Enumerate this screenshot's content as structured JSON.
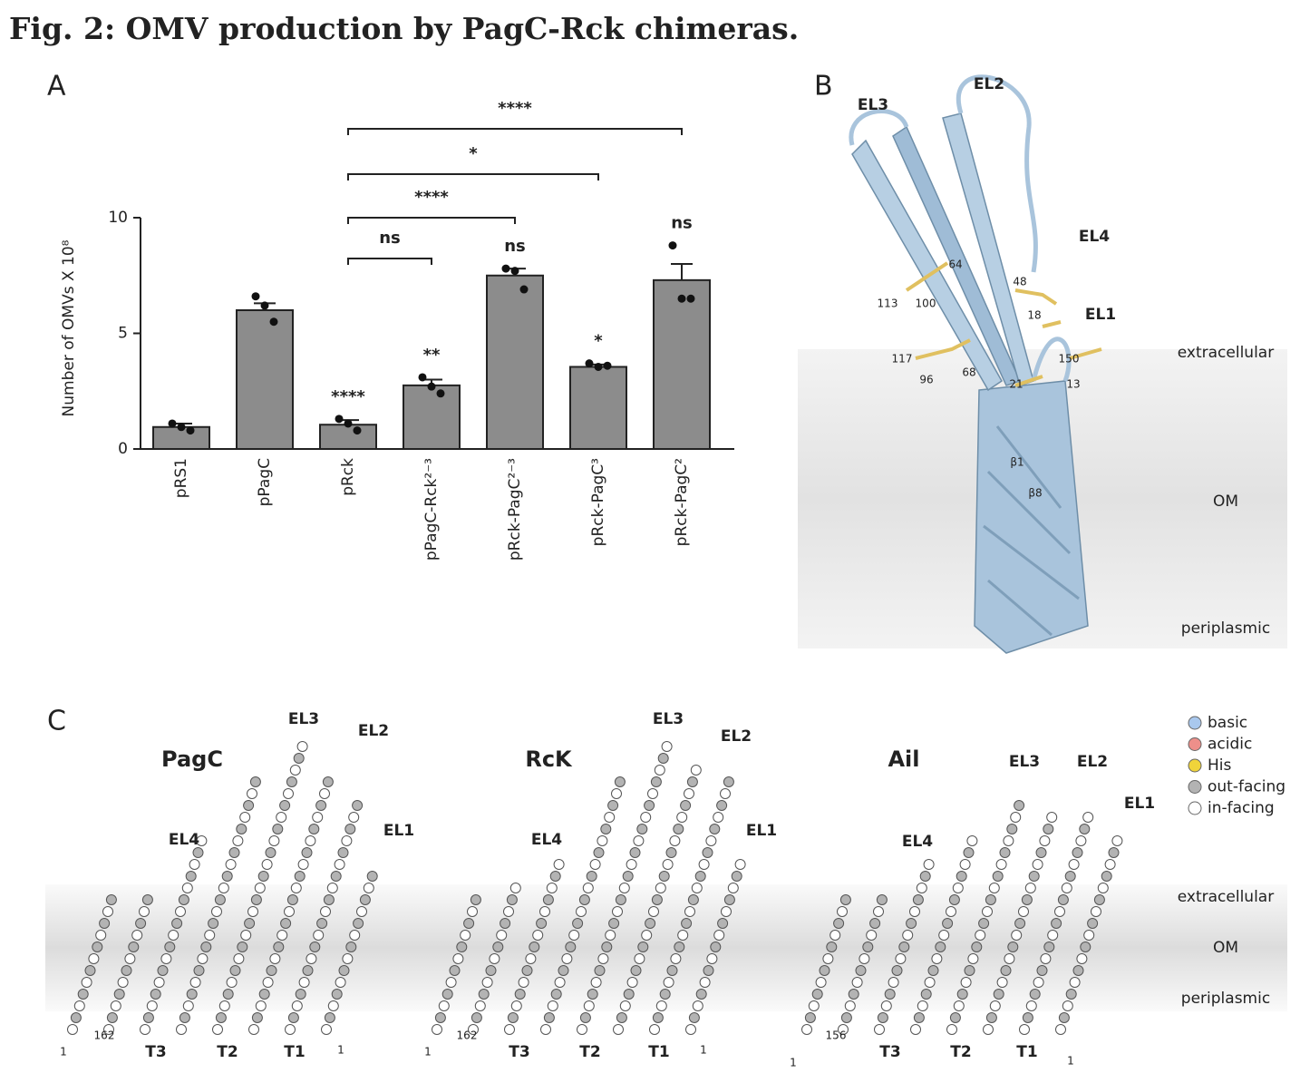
{
  "title": "Fig. 2: OMV production by PagC-Rck chimeras.",
  "chart_data": {
    "type": "bar",
    "panel": "A",
    "ylabel": "Number of OMVs X 10⁸",
    "categories": [
      "pRS1",
      "pPagC",
      "pRck",
      "pPagC-Rck²⁻³",
      "pRck-PagC²⁻³",
      "pRck-PagC³",
      "pRck-PagC²"
    ],
    "values": [
      0.95,
      6.0,
      1.05,
      2.75,
      7.5,
      3.55,
      7.3
    ],
    "errors": [
      0.15,
      0.3,
      0.2,
      0.25,
      0.3,
      0.1,
      0.7
    ],
    "points": [
      [
        1.1,
        0.95,
        0.8
      ],
      [
        6.6,
        6.2,
        5.5
      ],
      [
        1.3,
        1.1,
        0.8
      ],
      [
        3.1,
        2.7,
        2.4
      ],
      [
        7.8,
        7.7,
        6.9
      ],
      [
        3.7,
        3.55,
        3.6
      ],
      [
        8.8,
        6.5,
        6.5
      ]
    ],
    "value_annotations": [
      null,
      null,
      "****",
      "**",
      "ns",
      "*",
      "ns"
    ],
    "comparisons": [
      {
        "from": 2,
        "to": 3,
        "label": "ns"
      },
      {
        "from": 2,
        "to": 4,
        "label": "****"
      },
      {
        "from": 2,
        "to": 5,
        "label": "*"
      },
      {
        "from": 2,
        "to": 6,
        "label": "****"
      }
    ],
    "color": "#8c8c8c",
    "ylim": [
      0,
      10
    ],
    "yticks": [
      0,
      5,
      10
    ]
  },
  "panel_b": {
    "letter": "B",
    "loops": [
      "EL3",
      "EL2",
      "EL4",
      "EL1"
    ],
    "residues": [
      "64",
      "48",
      "113",
      "100",
      "18",
      "117",
      "150",
      "96",
      "68",
      "21",
      "13"
    ],
    "strands": [
      "β1",
      "β8"
    ],
    "regions": [
      "extracellular",
      "OM",
      "periplasmic"
    ]
  },
  "panel_c": {
    "letter": "C",
    "diagrams": [
      {
        "name": "PagC",
        "loops": [
          "EL3",
          "EL2",
          "EL4",
          "EL1"
        ],
        "bottom": [
          "1",
          "162",
          "T3",
          "T2",
          "T1",
          "1"
        ]
      },
      {
        "name": "RcK",
        "loops": [
          "EL3",
          "EL2",
          "EL4",
          "EL1"
        ],
        "bottom": [
          "1",
          "162",
          "T3",
          "T2",
          "T1",
          "1"
        ]
      },
      {
        "name": "Ail",
        "loops": [
          "EL3",
          "EL2",
          "EL4",
          "EL1"
        ],
        "bottom": [
          "1",
          "156",
          "T3",
          "T2",
          "T1",
          "1"
        ]
      }
    ],
    "legend": [
      {
        "label": "basic",
        "color": "#a9c8ee"
      },
      {
        "label": "acidic",
        "color": "#ee8f8a"
      },
      {
        "label": "His",
        "color": "#f0d43a"
      },
      {
        "label": "out-facing",
        "color": "#b3b3b3"
      },
      {
        "label": "in-facing",
        "color": "#ffffff"
      }
    ],
    "regions": [
      "extracellular",
      "OM",
      "periplasmic"
    ]
  }
}
